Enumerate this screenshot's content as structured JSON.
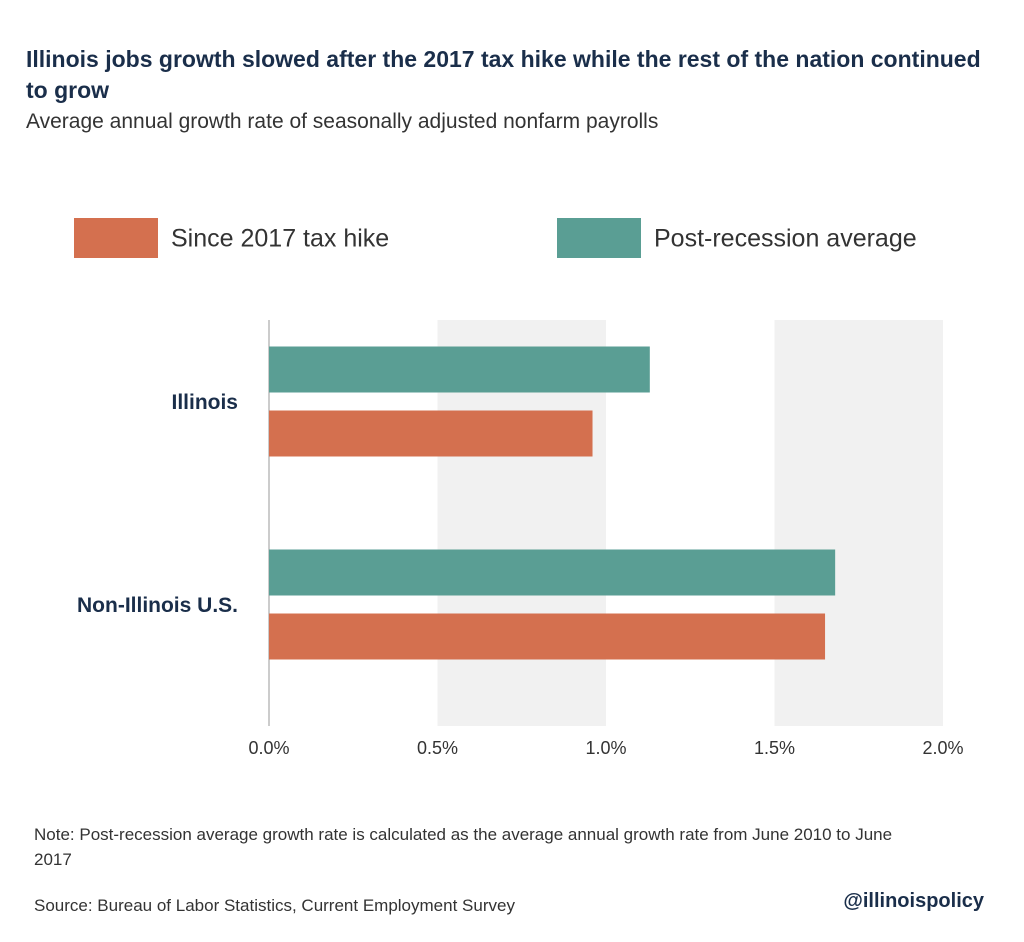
{
  "chart_data": {
    "type": "hbar",
    "title": "Illinois jobs growth slowed after the 2017 tax hike while the rest of the nation continued to grow",
    "subtitle": "Average annual growth rate of seasonally adjusted nonfarm payrolls",
    "categories": [
      "Illinois",
      "Non-Illinois U.S."
    ],
    "series": [
      {
        "name": "Since 2017 tax hike",
        "color": "#d4704f",
        "values": [
          0.96,
          1.65
        ]
      },
      {
        "name": "Post-recession average",
        "color": "#5a9e94",
        "values": [
          1.13,
          1.68
        ]
      }
    ],
    "xlim": [
      0,
      2
    ],
    "xticks": [
      {
        "value": 0,
        "label": "0.0%"
      },
      {
        "value": 0.5,
        "label": "0.5%"
      },
      {
        "value": 1,
        "label": "1.0%"
      },
      {
        "value": 1.5,
        "label": "1.5%"
      },
      {
        "value": 2,
        "label": "2.0%"
      }
    ],
    "grid": "bands",
    "note": "Note: Post-recession average growth rate is calculated as the average annual growth rate from June 2010 to June 2017",
    "source": "Source: Bureau of Labor Statistics, Current Employment Survey",
    "credit": "@illinoispolicy"
  }
}
